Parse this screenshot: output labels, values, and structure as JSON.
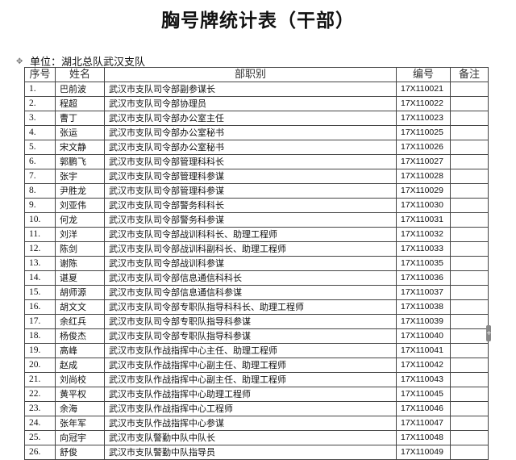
{
  "title": "胸号牌统计表（干部）",
  "unit_label": "单位：湖北总队武汉支队",
  "columns": [
    "序号",
    "姓名",
    "部职别",
    "编号",
    "备注"
  ],
  "rows": [
    [
      "1.",
      "巴前波",
      "武汉市支队司令部副参谋长",
      "17X110021",
      ""
    ],
    [
      "2.",
      "程超",
      "武汉市支队司令部协理员",
      "17X110022",
      ""
    ],
    [
      "3.",
      "曹丁",
      "武汉市支队司令部办公室主任",
      "17X110023",
      ""
    ],
    [
      "4.",
      "张运",
      "武汉市支队司令部办公室秘书",
      "17X110025",
      ""
    ],
    [
      "5.",
      "宋文静",
      "武汉市支队司令部办公室秘书",
      "17X110026",
      ""
    ],
    [
      "6.",
      "郭鹏飞",
      "武汉市支队司令部管理科科长",
      "17X110027",
      ""
    ],
    [
      "7.",
      "张宇",
      "武汉市支队司令部管理科参谋",
      "17X110028",
      ""
    ],
    [
      "8.",
      "尹胜龙",
      "武汉市支队司令部管理科参谋",
      "17X110029",
      ""
    ],
    [
      "9.",
      "刘亚伟",
      "武汉市支队司令部警务科科长",
      "17X110030",
      ""
    ],
    [
      "10.",
      "何龙",
      "武汉市支队司令部警务科参谋",
      "17X110031",
      ""
    ],
    [
      "11.",
      "刘洋",
      "武汉市支队司令部战训科科长、助理工程师",
      "17X110032",
      ""
    ],
    [
      "12.",
      "陈剑",
      "武汉市支队司令部战训科副科长、助理工程师",
      "17X110033",
      ""
    ],
    [
      "13.",
      "谢陈",
      "武汉市支队司令部战训科参谋",
      "17X110035",
      ""
    ],
    [
      "14.",
      "谌夏",
      "武汉市支队司令部信息通信科科长",
      "17X110036",
      ""
    ],
    [
      "15.",
      "胡师源",
      "武汉市支队司令部信息通信科参谋",
      "17X110037",
      ""
    ],
    [
      "16.",
      "胡文文",
      "武汉市支队司令部专职队指导科科长、助理工程师",
      "17X110038",
      ""
    ],
    [
      "17.",
      "余红兵",
      "武汉市支队司令部专职队指导科参谋",
      "17X110039",
      ""
    ],
    [
      "18.",
      "杨俊杰",
      "武汉市支队司令部专职队指导科参谋",
      "17X110040",
      ""
    ],
    [
      "19.",
      "高峰",
      "武汉市支队作战指挥中心主任、助理工程师",
      "17X110041",
      ""
    ],
    [
      "20.",
      "赵成",
      "武汉市支队作战指挥中心副主任、助理工程师",
      "17X110042",
      ""
    ],
    [
      "21.",
      "刘尚校",
      "武汉市支队作战指挥中心副主任、助理工程师",
      "17X110043",
      ""
    ],
    [
      "22.",
      "黄平权",
      "武汉市支队作战指挥中心助理工程师",
      "17X110045",
      ""
    ],
    [
      "23.",
      "余海",
      "武汉市支队作战指挥中心工程师",
      "17X110046",
      ""
    ],
    [
      "24.",
      "张年军",
      "武汉市支队作战指挥中心参谋",
      "17X110047",
      ""
    ],
    [
      "25.",
      "向冠宇",
      "武汉市支队警勤中队中队长",
      "17X110048",
      ""
    ],
    [
      "26.",
      "舒俊",
      "武汉市支队警勤中队指导员",
      "17X110049",
      ""
    ]
  ]
}
